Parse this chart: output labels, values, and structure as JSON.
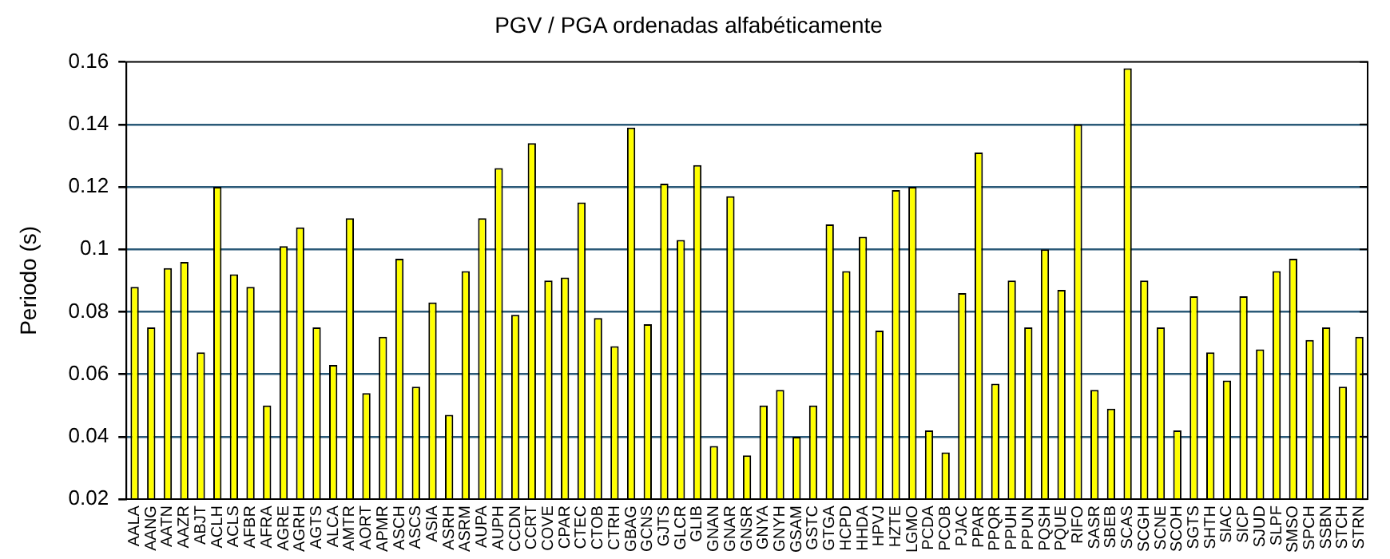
{
  "chart_data": {
    "type": "bar",
    "title": "PGV / PGA ordenadas alfabéticamente",
    "ylabel": "Periodo (s)",
    "categories": [
      "AALA",
      "AANG",
      "AATN",
      "AAZR",
      "ABJT",
      "ACLH",
      "ACLS",
      "AFBR",
      "AFRA",
      "AGRE",
      "AGRH",
      "AGTS",
      "ALCA",
      "AMTR",
      "AORT",
      "APMR",
      "ASCH",
      "ASCS",
      "ASIA",
      "ASRH",
      "ASRM",
      "AUPA",
      "AUPH",
      "CCDN",
      "CCRT",
      "COVE",
      "CPAR",
      "CTEC",
      "CTOB",
      "CTRH",
      "GBAG",
      "GCNS",
      "GJTS",
      "GLCR",
      "GLIB",
      "GNAN",
      "GNAR",
      "GNSR",
      "GNYA",
      "GNYH",
      "GSAM",
      "GSTC",
      "GTGA",
      "HCPD",
      "HHDA",
      "HPVJ",
      "HZTE",
      "LGMO",
      "PCDA",
      "PCOB",
      "PJAC",
      "PPAR",
      "PPQR",
      "PPUH",
      "PPUN",
      "PQSH",
      "PQUE",
      "RIFO",
      "SASR",
      "SBEB",
      "SCAS",
      "SCGH",
      "SCNE",
      "SCOH",
      "SGTS",
      "SHTH",
      "SIAC",
      "SICP",
      "SJUD",
      "SLPF",
      "SMSO",
      "SPCH",
      "SSBN",
      "STCH",
      "STRN"
    ],
    "values": [
      0.088,
      0.075,
      0.094,
      0.096,
      0.067,
      0.12,
      0.092,
      0.088,
      0.05,
      0.101,
      0.107,
      0.075,
      0.063,
      0.11,
      0.054,
      0.072,
      0.097,
      0.056,
      0.083,
      0.047,
      0.093,
      0.11,
      0.126,
      0.079,
      0.134,
      0.09,
      0.091,
      0.115,
      0.078,
      0.069,
      0.139,
      0.076,
      0.121,
      0.103,
      0.127,
      0.037,
      0.117,
      0.034,
      0.05,
      0.055,
      0.04,
      0.05,
      0.108,
      0.093,
      0.104,
      0.074,
      0.119,
      0.12,
      0.042,
      0.035,
      0.086,
      0.131,
      0.057,
      0.09,
      0.075,
      0.1,
      0.087,
      0.14,
      0.055,
      0.049,
      0.158,
      0.09,
      0.075,
      0.042,
      0.085,
      0.067,
      0.058,
      0.085,
      0.068,
      0.093,
      0.097,
      0.071,
      0.075,
      0.056,
      0.072
    ],
    "color": "#ffff00",
    "ylim": [
      0.02,
      0.16
    ],
    "yticks": [
      0.02,
      0.04,
      0.06,
      0.08,
      0.1,
      0.12,
      0.14,
      0.16
    ],
    "grid": "y"
  }
}
